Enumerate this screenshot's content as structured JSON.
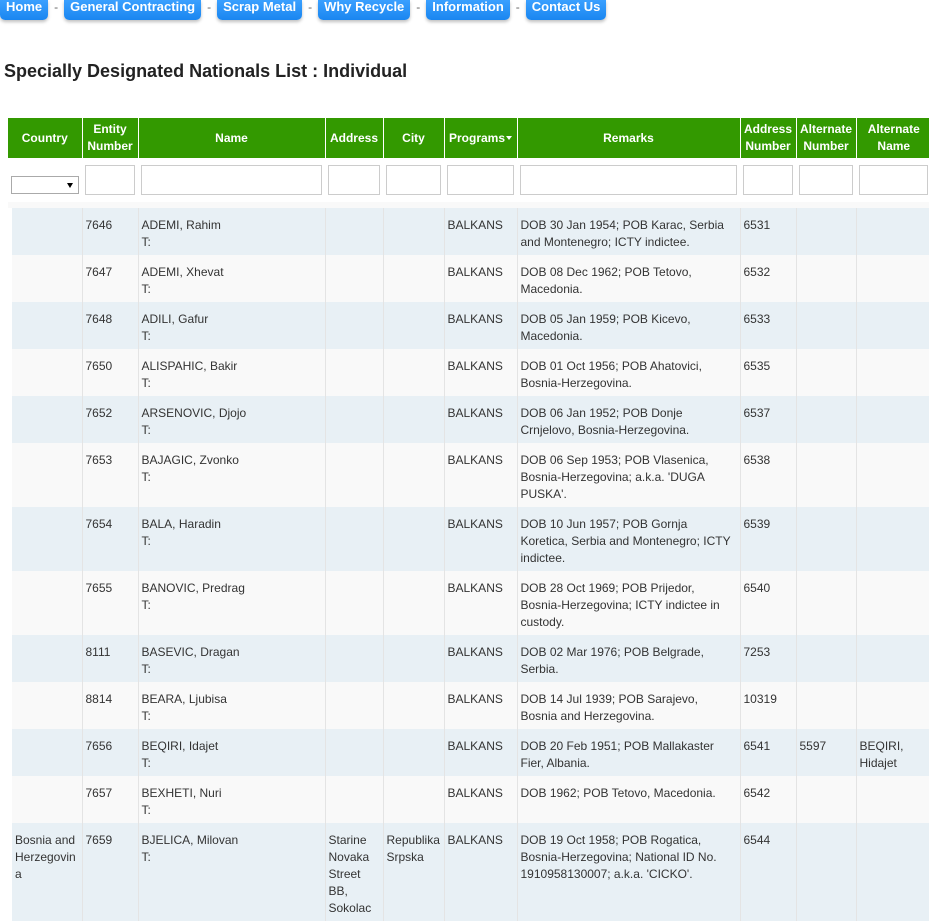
{
  "nav": [
    "Home",
    "General Contracting",
    "Scrap Metal",
    "Why Recycle",
    "Information",
    "Contact Us"
  ],
  "nav_sep": "-",
  "page_title": "Specially Designated Nationals List : Individual",
  "columns": [
    "Country",
    "Entity Number",
    "Name",
    "Address",
    "City",
    "Programs",
    "Remarks",
    "Address Number",
    "Alternate Number",
    "Alternate Name"
  ],
  "rows": [
    {
      "country": "",
      "entity": "7646",
      "name": "ADEMI, Rahim",
      "type": "T:",
      "address": "",
      "city": "",
      "programs": "BALKANS",
      "remarks": "DOB 30 Jan 1954; POB Karac, Serbia and Montenegro; ICTY indictee.",
      "address_number": "6531",
      "alt_number": "",
      "alt_name": ""
    },
    {
      "country": "",
      "entity": "7647",
      "name": "ADEMI, Xhevat",
      "type": "T:",
      "address": "",
      "city": "",
      "programs": "BALKANS",
      "remarks": "DOB 08 Dec 1962; POB Tetovo, Macedonia.",
      "address_number": "6532",
      "alt_number": "",
      "alt_name": ""
    },
    {
      "country": "",
      "entity": "7648",
      "name": "ADILI, Gafur",
      "type": "T:",
      "address": "",
      "city": "",
      "programs": "BALKANS",
      "remarks": "DOB 05 Jan 1959; POB Kicevo, Macedonia.",
      "address_number": "6533",
      "alt_number": "",
      "alt_name": ""
    },
    {
      "country": "",
      "entity": "7650",
      "name": "ALISPAHIC, Bakir",
      "type": "T:",
      "address": "",
      "city": "",
      "programs": "BALKANS",
      "remarks": "DOB 01 Oct 1956; POB Ahatovici, Bosnia-Herzegovina.",
      "address_number": "6535",
      "alt_number": "",
      "alt_name": ""
    },
    {
      "country": "",
      "entity": "7652",
      "name": "ARSENOVIC, Djojo",
      "type": "T:",
      "address": "",
      "city": "",
      "programs": "BALKANS",
      "remarks": "DOB 06 Jan 1952; POB Donje Crnjelovo, Bosnia-Herzegovina.",
      "address_number": "6537",
      "alt_number": "",
      "alt_name": ""
    },
    {
      "country": "",
      "entity": "7653",
      "name": "BAJAGIC, Zvonko",
      "type": "T:",
      "address": "",
      "city": "",
      "programs": "BALKANS",
      "remarks": "DOB 06 Sep 1953; POB Vlasenica, Bosnia-Herzegovina; a.k.a. 'DUGA PUSKA'.",
      "address_number": "6538",
      "alt_number": "",
      "alt_name": ""
    },
    {
      "country": "",
      "entity": "7654",
      "name": "BALA, Haradin",
      "type": "T:",
      "address": "",
      "city": "",
      "programs": "BALKANS",
      "remarks": "DOB 10 Jun 1957; POB Gornja Koretica, Serbia and Montenegro; ICTY indictee.",
      "address_number": "6539",
      "alt_number": "",
      "alt_name": ""
    },
    {
      "country": "",
      "entity": "7655",
      "name": "BANOVIC, Predrag",
      "type": "T:",
      "address": "",
      "city": "",
      "programs": "BALKANS",
      "remarks": "DOB 28 Oct 1969; POB Prijedor, Bosnia-Herzegovina; ICTY indictee in custody.",
      "address_number": "6540",
      "alt_number": "",
      "alt_name": ""
    },
    {
      "country": "",
      "entity": "8111",
      "name": "BASEVIC, Dragan",
      "type": "T:",
      "address": "",
      "city": "",
      "programs": "BALKANS",
      "remarks": "DOB 02 Mar 1976; POB Belgrade, Serbia.",
      "address_number": "7253",
      "alt_number": "",
      "alt_name": ""
    },
    {
      "country": "",
      "entity": "8814",
      "name": "BEARA, Ljubisa",
      "type": "T:",
      "address": "",
      "city": "",
      "programs": "BALKANS",
      "remarks": "DOB 14 Jul 1939; POB Sarajevo, Bosnia and Herzegovina.",
      "address_number": "10319",
      "alt_number": "",
      "alt_name": ""
    },
    {
      "country": "",
      "entity": "7656",
      "name": "BEQIRI, Idajet",
      "type": "T:",
      "address": "",
      "city": "",
      "programs": "BALKANS",
      "remarks": "DOB 20 Feb 1951; POB Mallakaster Fier, Albania.",
      "address_number": "6541",
      "alt_number": "5597",
      "alt_name": "BEQIRI, Hidajet"
    },
    {
      "country": "",
      "entity": "7657",
      "name": "BEXHETI, Nuri",
      "type": "T:",
      "address": "",
      "city": "",
      "programs": "BALKANS",
      "remarks": "DOB 1962; POB Tetovo, Macedonia.",
      "address_number": "6542",
      "alt_number": "",
      "alt_name": ""
    },
    {
      "country": "Bosnia and Herzegovina",
      "entity": "7659",
      "name": "BJELICA, Milovan",
      "type": "T:",
      "address": "Starine Novaka Street BB, Sokolac",
      "city": "Republika Srpska",
      "programs": "BALKANS",
      "remarks": "DOB 19 Oct 1958; POB Rogatica, Bosnia-Herzegovina; National ID No. 1910958130007; a.k.a. 'CICKO'.",
      "address_number": "6544",
      "alt_number": "",
      "alt_name": ""
    }
  ]
}
